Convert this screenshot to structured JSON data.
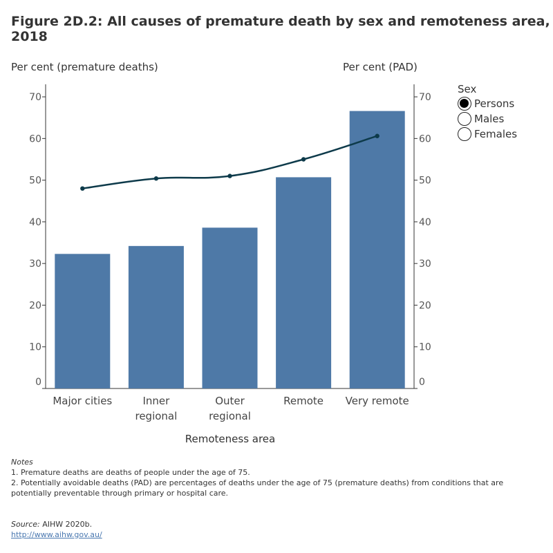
{
  "title": "Figure 2D.2: All causes of premature death by sex and remoteness area, 2018",
  "legend": {
    "title": "Sex",
    "options": [
      {
        "label": "Persons",
        "selected": true
      },
      {
        "label": "Males",
        "selected": false
      },
      {
        "label": "Females",
        "selected": false
      }
    ]
  },
  "notes": {
    "heading": "Notes",
    "lines": [
      "1. Premature deaths are deaths of people under the age of 75.",
      "2. Potentially avoidable deaths (PAD) are percentages of deaths under the age of 75 (premature deaths) from conditions that are potentially preventable through primary or hospital care."
    ]
  },
  "source": {
    "label": "Source:",
    "text": " AIHW 2020b.",
    "link": "http://www.aihw.gov.au/"
  },
  "colors": {
    "bar": "#4e79a7",
    "line": "#0d3a4a",
    "axis": "#333333"
  },
  "chart_data": {
    "type": "bar",
    "categories": [
      "Major cities",
      "Inner regional",
      "Outer regional",
      "Remote",
      "Very remote"
    ],
    "category_lines": [
      [
        "Major cities"
      ],
      [
        "Inner",
        "regional"
      ],
      [
        "Outer",
        "regional"
      ],
      [
        "Remote"
      ],
      [
        "Very remote"
      ]
    ],
    "series": [
      {
        "name": "Per cent (premature deaths)",
        "type": "bar",
        "axis": "left",
        "values": [
          32.3,
          34.2,
          38.6,
          50.7,
          66.6
        ]
      },
      {
        "name": "Per cent (PAD)",
        "type": "line",
        "axis": "right",
        "values": [
          48.0,
          50.4,
          51.0,
          55.0,
          60.6
        ]
      }
    ],
    "xlabel": "Remoteness area",
    "ylabel": "Per cent (premature deaths)",
    "y2label": "Per cent (PAD)",
    "ylim": [
      0,
      73
    ],
    "y2lim": [
      0,
      73
    ],
    "yticks": [
      0,
      10,
      20,
      30,
      40,
      50,
      60,
      70
    ],
    "grid": false,
    "legend_position": "right"
  }
}
